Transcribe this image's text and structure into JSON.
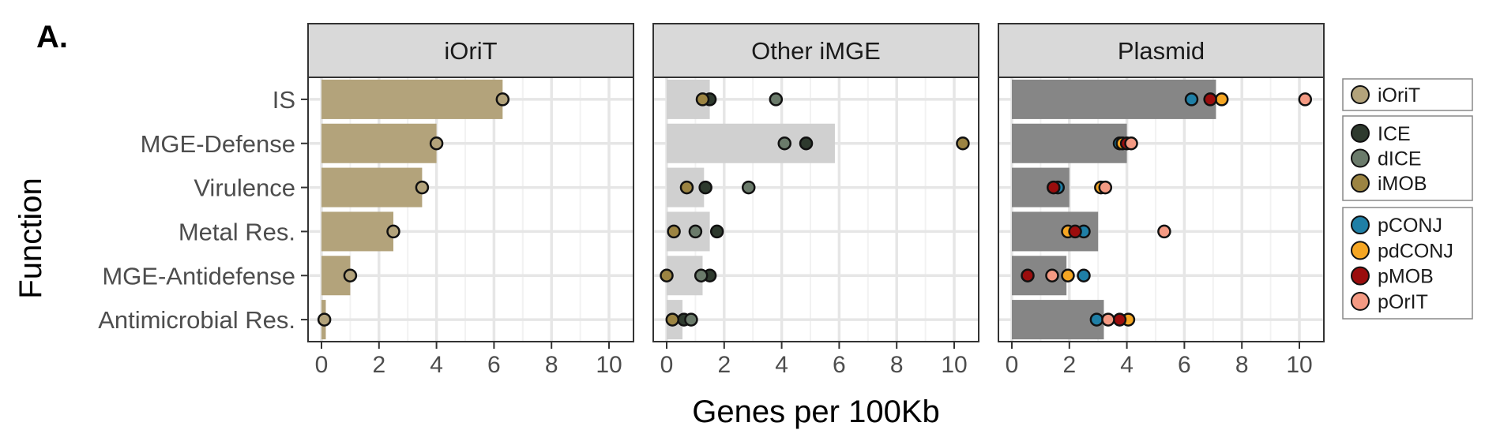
{
  "panel_label": "A.",
  "chart_data": {
    "type": "bar",
    "title": "",
    "xlabel": "Genes per 100Kb",
    "ylabel": "Function",
    "xlim": [
      0,
      10.8
    ],
    "xticks": [
      0,
      2,
      4,
      6,
      8,
      10
    ],
    "grid": true,
    "categories": [
      "IS",
      "MGE-Defense",
      "Virulence",
      "Metal Res.",
      "MGE-Antidefense",
      "Antimicrobial Res."
    ],
    "facets": [
      {
        "name": "iOriT",
        "bar_color": "#b3a37b",
        "bars": [
          6.3,
          4.0,
          3.5,
          2.5,
          1.0,
          0.15
        ],
        "points": [
          {
            "series": "iOriT",
            "values": [
              6.3,
              4.0,
              3.5,
              2.5,
              1.0,
              0.1
            ]
          }
        ]
      },
      {
        "name": "Other iMGE",
        "bar_color": "#d0d0d0",
        "bars": [
          1.5,
          5.85,
          1.3,
          1.5,
          1.25,
          0.55
        ],
        "points": [
          {
            "series": "ICE",
            "values": [
              1.5,
              4.85,
              1.35,
              1.75,
              1.5,
              0.6
            ]
          },
          {
            "series": "dICE",
            "values": [
              3.8,
              4.1,
              2.85,
              1.0,
              1.2,
              0.85
            ]
          },
          {
            "series": "iMOB",
            "values": [
              1.25,
              10.3,
              0.7,
              0.25,
              0.0,
              0.2
            ]
          }
        ]
      },
      {
        "name": "Plasmid",
        "bar_color": "#868686",
        "bars": [
          7.1,
          4.0,
          2.0,
          3.0,
          1.9,
          3.2
        ],
        "points": [
          {
            "series": "pCONJ",
            "values": [
              6.25,
              3.75,
              1.6,
              2.5,
              2.5,
              2.95
            ]
          },
          {
            "series": "pdCONJ",
            "values": [
              7.3,
              3.85,
              3.1,
              1.95,
              1.95,
              4.05
            ]
          },
          {
            "series": "pMOB",
            "values": [
              6.9,
              4.0,
              1.45,
              2.2,
              0.55,
              3.75
            ]
          },
          {
            "series": "pOrIT",
            "values": [
              10.2,
              4.15,
              3.25,
              5.3,
              1.4,
              3.35
            ]
          }
        ]
      }
    ],
    "legend": {
      "placement": "right",
      "groups": [
        [
          {
            "name": "iOriT",
            "color": "#b3a37b"
          }
        ],
        [
          {
            "name": "ICE",
            "color": "#2e3a2e"
          },
          {
            "name": "dICE",
            "color": "#6b7b6b"
          },
          {
            "name": "iMOB",
            "color": "#9c8442"
          }
        ],
        [
          {
            "name": "pCONJ",
            "color": "#1f7fa6"
          },
          {
            "name": "pdCONJ",
            "color": "#f5a623"
          },
          {
            "name": "pMOB",
            "color": "#9b0d0d"
          },
          {
            "name": "pOrIT",
            "color": "#f49a83"
          }
        ]
      ]
    }
  }
}
